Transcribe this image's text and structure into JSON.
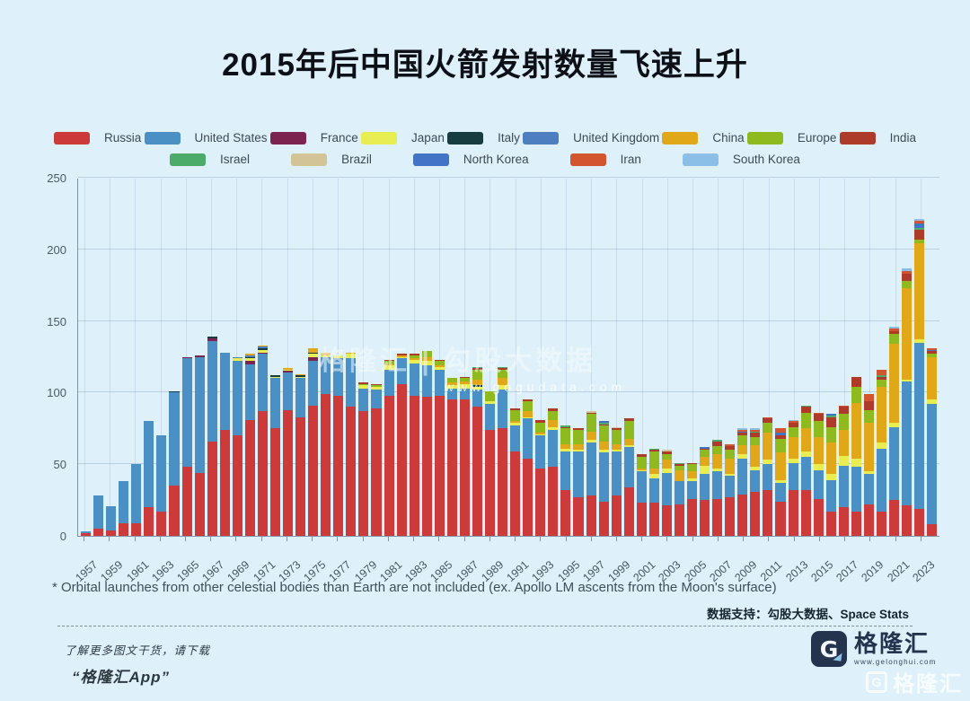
{
  "title": "2015年后中国火箭发射数量飞速上升",
  "footnote": "* Orbital launches from other celestial bodies than Earth are not included (ex. Apollo LM ascents from the Moon's surface)",
  "source": "数据支持：勾股大数据、Space Stats",
  "watermark": {
    "line1": "格隆汇 | 勾股大数据",
    "line2": "www.gogudata.com"
  },
  "promo": {
    "line1": "了解更多图文干货，请下载",
    "line2": "“格隆汇App”"
  },
  "logo": {
    "g": "G",
    "text": "格隆汇",
    "url": "www.gelonghui.com"
  },
  "corner_watermark": {
    "g": "G",
    "text": "格隆汇"
  },
  "colors": {
    "background": "#def1fb",
    "title": "#0d1117"
  },
  "chart_data": {
    "type": "bar",
    "stacked": true,
    "title": "2015年后中国火箭发射数量飞速上升",
    "xlabel": "",
    "ylabel": "",
    "ylim": [
      0,
      250
    ],
    "yticks": [
      0,
      50,
      100,
      150,
      200,
      250
    ],
    "grid": true,
    "legend_position": "top",
    "x": [
      1957,
      1958,
      1959,
      1960,
      1961,
      1962,
      1963,
      1964,
      1965,
      1966,
      1967,
      1968,
      1969,
      1970,
      1971,
      1972,
      1973,
      1974,
      1975,
      1976,
      1977,
      1978,
      1979,
      1980,
      1981,
      1982,
      1983,
      1984,
      1985,
      1986,
      1987,
      1988,
      1989,
      1990,
      1991,
      1992,
      1993,
      1994,
      1995,
      1996,
      1997,
      1998,
      1999,
      2000,
      2001,
      2002,
      2003,
      2004,
      2005,
      2006,
      2007,
      2008,
      2009,
      2010,
      2011,
      2012,
      2013,
      2014,
      2015,
      2016,
      2017,
      2018,
      2019,
      2020,
      2021,
      2022,
      2023,
      2024
    ],
    "x_tick_step": 2,
    "series": [
      {
        "name": "Russia",
        "key": "russia",
        "color": "#cc3a3a",
        "values": [
          2,
          5,
          4,
          9,
          9,
          20,
          17,
          35,
          48,
          44,
          66,
          74,
          70,
          81,
          87,
          75,
          88,
          83,
          91,
          99,
          98,
          90,
          87,
          89,
          98,
          106,
          98,
          97,
          98,
          95,
          95,
          90,
          74,
          75,
          59,
          54,
          47,
          48,
          32,
          27,
          28,
          24,
          28,
          34,
          23,
          23,
          21,
          22,
          26,
          25,
          26,
          27,
          29,
          31,
          32,
          24,
          32,
          32,
          26,
          17,
          20,
          17,
          22,
          17,
          25,
          21,
          19,
          8
        ]
      },
      {
        "name": "United States",
        "key": "united-states",
        "color": "#4a90c4",
        "values": [
          1,
          23,
          17,
          29,
          41,
          60,
          53,
          65,
          76,
          81,
          70,
          54,
          52,
          39,
          40,
          35,
          26,
          27,
          31,
          26,
          26,
          34,
          16,
          13,
          18,
          18,
          22,
          22,
          18,
          8,
          8,
          12,
          18,
          27,
          18,
          28,
          23,
          26,
          27,
          32,
          37,
          34,
          31,
          28,
          22,
          17,
          23,
          16,
          12,
          18,
          19,
          15,
          25,
          15,
          18,
          13,
          19,
          23,
          20,
          22,
          29,
          31,
          21,
          44,
          51,
          87,
          116,
          84
        ]
      },
      {
        "name": "France",
        "key": "france",
        "color": "#7c2350",
        "values": [
          0,
          0,
          0,
          0,
          0,
          0,
          0,
          0,
          1,
          1,
          2,
          0,
          0,
          2,
          1,
          0,
          1,
          0,
          3,
          0,
          0,
          0,
          0,
          0,
          0,
          0,
          0,
          0,
          0,
          0,
          0,
          0,
          0,
          0,
          0,
          0,
          0,
          0,
          0,
          0,
          0,
          0,
          0,
          0,
          0,
          0,
          0,
          0,
          0,
          0,
          0,
          0,
          0,
          0,
          0,
          0,
          0,
          0,
          0,
          0,
          0,
          0,
          0,
          0,
          0,
          0,
          0,
          0
        ]
      },
      {
        "name": "Japan",
        "key": "japan",
        "color": "#e8ee52",
        "values": [
          0,
          0,
          0,
          0,
          0,
          0,
          0,
          0,
          0,
          0,
          0,
          0,
          2,
          2,
          2,
          1,
          1,
          1,
          2,
          1,
          2,
          3,
          2,
          2,
          3,
          1,
          3,
          3,
          2,
          2,
          3,
          2,
          2,
          3,
          2,
          1,
          1,
          2,
          2,
          1,
          2,
          2,
          1,
          1,
          1,
          3,
          3,
          0,
          2,
          6,
          2,
          1,
          3,
          2,
          3,
          2,
          3,
          4,
          4,
          4,
          7,
          6,
          2,
          4,
          3,
          1,
          2,
          3
        ]
      },
      {
        "name": "Italy",
        "key": "italy",
        "color": "#173d40",
        "values": [
          0,
          0,
          0,
          0,
          0,
          0,
          0,
          1,
          0,
          0,
          1,
          0,
          0,
          1,
          1,
          1,
          0,
          1,
          1,
          0,
          0,
          0,
          0,
          0,
          0,
          0,
          0,
          0,
          0,
          0,
          0,
          1,
          0,
          0,
          0,
          0,
          0,
          0,
          0,
          0,
          0,
          0,
          0,
          0,
          0,
          0,
          0,
          0,
          0,
          0,
          0,
          0,
          0,
          0,
          0,
          0,
          0,
          0,
          0,
          0,
          0,
          0,
          0,
          0,
          0,
          0,
          0,
          0
        ]
      },
      {
        "name": "United Kingdom",
        "key": "united-kingdom",
        "color": "#4d7ec0",
        "values": [
          0,
          0,
          0,
          0,
          0,
          0,
          0,
          0,
          0,
          0,
          0,
          0,
          1,
          1,
          1,
          0,
          0,
          0,
          0,
          0,
          0,
          0,
          0,
          0,
          0,
          0,
          0,
          0,
          0,
          0,
          0,
          0,
          0,
          0,
          0,
          0,
          0,
          0,
          0,
          0,
          0,
          0,
          0,
          0,
          0,
          0,
          0,
          0,
          0,
          0,
          0,
          0,
          0,
          0,
          0,
          0,
          0,
          0,
          0,
          0,
          0,
          0,
          0,
          0,
          0,
          0,
          0,
          0
        ]
      },
      {
        "name": "China",
        "key": "china",
        "color": "#e0a818",
        "values": [
          0,
          0,
          0,
          0,
          0,
          0,
          0,
          0,
          0,
          0,
          0,
          0,
          0,
          1,
          1,
          0,
          1,
          1,
          3,
          2,
          0,
          1,
          0,
          0,
          1,
          1,
          1,
          3,
          1,
          2,
          2,
          4,
          0,
          5,
          1,
          4,
          1,
          5,
          3,
          4,
          6,
          6,
          4,
          5,
          1,
          4,
          6,
          8,
          5,
          6,
          10,
          11,
          6,
          15,
          19,
          19,
          15,
          16,
          19,
          22,
          18,
          39,
          34,
          39,
          55,
          64,
          67,
          30
        ]
      },
      {
        "name": "Europe",
        "key": "europe",
        "color": "#8eba20",
        "values": [
          0,
          0,
          0,
          0,
          0,
          0,
          0,
          0,
          0,
          0,
          0,
          0,
          0,
          0,
          0,
          0,
          0,
          0,
          0,
          0,
          0,
          0,
          1,
          1,
          2,
          0,
          2,
          4,
          3,
          3,
          2,
          7,
          7,
          6,
          8,
          7,
          7,
          6,
          11,
          10,
          12,
          11,
          10,
          12,
          8,
          12,
          4,
          3,
          5,
          5,
          6,
          6,
          7,
          6,
          7,
          10,
          7,
          11,
          11,
          11,
          11,
          11,
          9,
          5,
          7,
          5,
          3,
          2
        ]
      },
      {
        "name": "India",
        "key": "india",
        "color": "#ae3a2a",
        "values": [
          0,
          0,
          0,
          0,
          0,
          0,
          0,
          0,
          0,
          0,
          0,
          0,
          0,
          0,
          0,
          0,
          0,
          0,
          0,
          0,
          0,
          0,
          1,
          1,
          1,
          1,
          1,
          0,
          1,
          0,
          1,
          1,
          0,
          1,
          1,
          1,
          2,
          2,
          1,
          1,
          1,
          1,
          1,
          2,
          2,
          1,
          2,
          1,
          1,
          1,
          3,
          3,
          2,
          3,
          3,
          2,
          3,
          4,
          5,
          7,
          5,
          7,
          6,
          2,
          2,
          5,
          7,
          2
        ]
      },
      {
        "name": "Israel",
        "key": "israel",
        "color": "#4cab68",
        "values": [
          0,
          0,
          0,
          0,
          0,
          0,
          0,
          0,
          0,
          0,
          0,
          0,
          0,
          0,
          0,
          0,
          0,
          0,
          0,
          0,
          0,
          0,
          0,
          0,
          0,
          0,
          0,
          0,
          0,
          0,
          0,
          1,
          0,
          1,
          0,
          0,
          0,
          0,
          1,
          0,
          0,
          1,
          0,
          0,
          0,
          1,
          0,
          1,
          0,
          0,
          1,
          0,
          0,
          1,
          0,
          0,
          0,
          1,
          0,
          1,
          0,
          0,
          0,
          1,
          0,
          0,
          1,
          0
        ]
      },
      {
        "name": "Brazil",
        "key": "brazil",
        "color": "#d2c496",
        "values": [
          0,
          0,
          0,
          0,
          0,
          0,
          0,
          0,
          0,
          0,
          0,
          0,
          0,
          0,
          0,
          0,
          0,
          0,
          0,
          0,
          0,
          0,
          0,
          0,
          0,
          0,
          0,
          0,
          0,
          0,
          0,
          0,
          0,
          0,
          0,
          0,
          0,
          0,
          0,
          0,
          1,
          0,
          1,
          0,
          0,
          0,
          1,
          0,
          0,
          0,
          0,
          0,
          0,
          0,
          0,
          0,
          0,
          0,
          0,
          0,
          0,
          0,
          0,
          0,
          0,
          0,
          0,
          0
        ]
      },
      {
        "name": "North Korea",
        "key": "north-korea",
        "color": "#4273c4",
        "values": [
          0,
          0,
          0,
          0,
          0,
          0,
          0,
          0,
          0,
          0,
          0,
          0,
          0,
          0,
          0,
          0,
          0,
          0,
          0,
          0,
          0,
          0,
          0,
          0,
          0,
          0,
          0,
          0,
          0,
          0,
          0,
          0,
          0,
          0,
          0,
          0,
          0,
          0,
          0,
          0,
          0,
          1,
          0,
          0,
          0,
          0,
          0,
          0,
          0,
          1,
          0,
          0,
          1,
          0,
          0,
          2,
          0,
          0,
          0,
          1,
          0,
          0,
          0,
          0,
          0,
          0,
          3,
          1
        ]
      },
      {
        "name": "Iran",
        "key": "iran",
        "color": "#d2552f",
        "values": [
          0,
          0,
          0,
          0,
          0,
          0,
          0,
          0,
          0,
          0,
          0,
          0,
          0,
          0,
          0,
          0,
          0,
          0,
          0,
          0,
          0,
          0,
          0,
          0,
          0,
          0,
          0,
          0,
          0,
          0,
          0,
          0,
          0,
          0,
          0,
          0,
          0,
          0,
          0,
          0,
          0,
          0,
          0,
          0,
          0,
          0,
          0,
          0,
          0,
          0,
          0,
          1,
          1,
          1,
          1,
          3,
          1,
          0,
          1,
          0,
          1,
          0,
          5,
          4,
          2,
          2,
          2,
          1
        ]
      },
      {
        "name": "South Korea",
        "key": "south-korea",
        "color": "#8cbfe8",
        "values": [
          0,
          0,
          0,
          0,
          0,
          0,
          0,
          0,
          0,
          0,
          0,
          0,
          0,
          0,
          0,
          0,
          0,
          0,
          0,
          0,
          0,
          0,
          0,
          0,
          0,
          0,
          0,
          0,
          0,
          0,
          0,
          0,
          0,
          0,
          0,
          0,
          0,
          0,
          0,
          0,
          0,
          0,
          0,
          0,
          0,
          0,
          0,
          0,
          0,
          0,
          0,
          0,
          1,
          1,
          0,
          0,
          1,
          0,
          0,
          0,
          0,
          0,
          0,
          0,
          1,
          2,
          1,
          0
        ]
      }
    ]
  }
}
